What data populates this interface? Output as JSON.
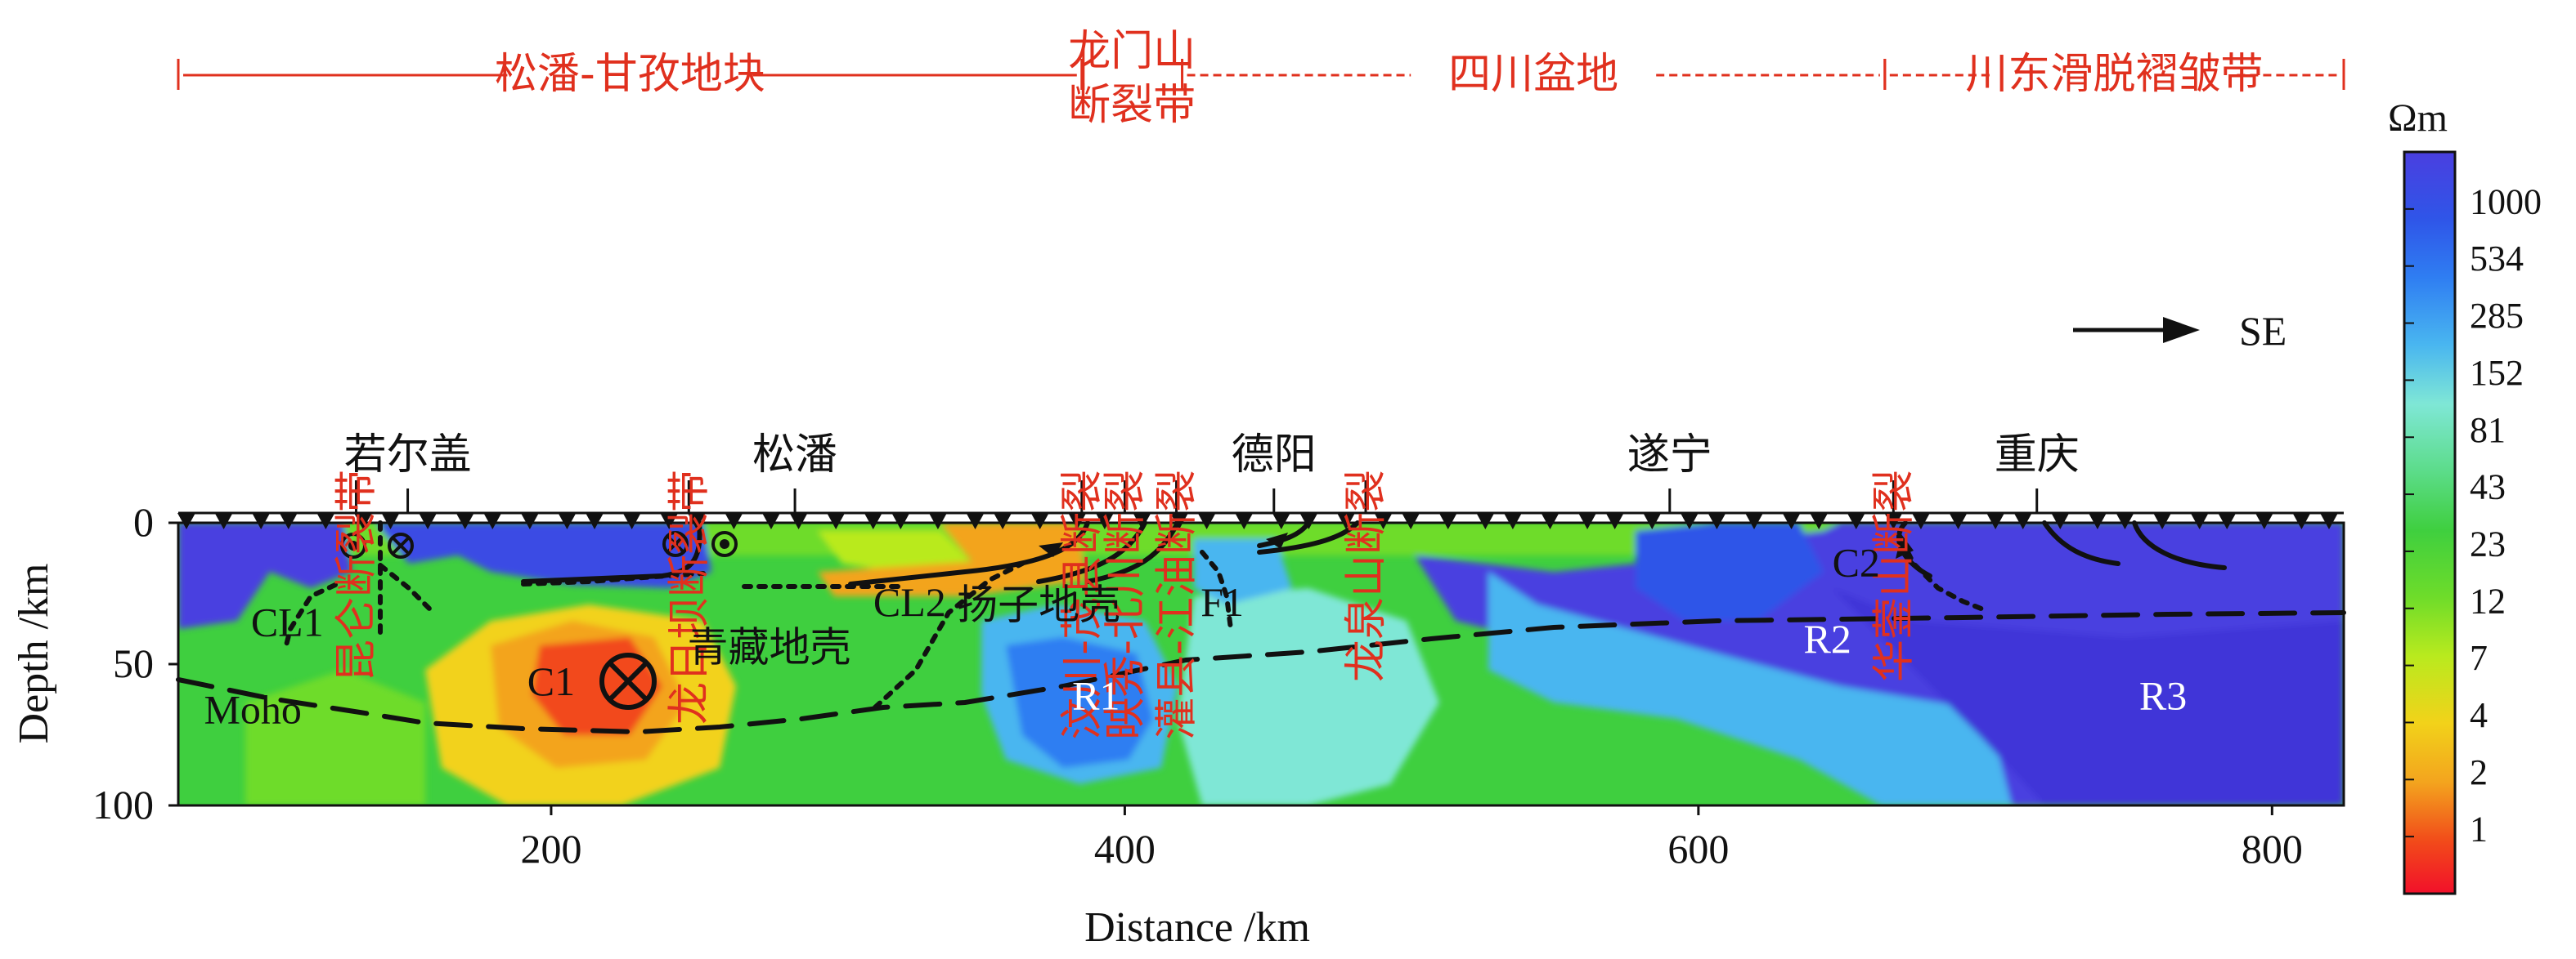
{
  "chart_data": {
    "type": "heatmap",
    "xlabel": "Distance /km",
    "ylabel": "Depth /km",
    "xlim": [
      70,
      825
    ],
    "ylim": [
      0,
      100
    ],
    "xticks": [
      "200",
      "400",
      "600",
      "800"
    ],
    "yticks": [
      "0",
      "50",
      "100"
    ],
    "colorbar": {
      "unit": "Ωm",
      "labels": [
        "1000",
        "534",
        "285",
        "152",
        "81",
        "43",
        "23",
        "12",
        "7",
        "4",
        "2",
        "1"
      ],
      "colors": [
        "#4a3fe0",
        "#2f55e8",
        "#2f7ef2",
        "#49b6f0",
        "#7fe7d6",
        "#5cdc8a",
        "#3fcf3f",
        "#6edc2a",
        "#b9ea1e",
        "#f2d21a",
        "#f3a41e",
        "#f24a1a",
        "#f2102a"
      ]
    },
    "regions": [
      {
        "label": "松潘-甘孜地块",
        "x_start": 70,
        "x_end": 385,
        "style": "solid"
      },
      {
        "label": "龙门山断裂带",
        "x_start": 385,
        "x_end": 420,
        "style": "bracket"
      },
      {
        "label": "四川盆地",
        "x_start": 420,
        "x_end": 665,
        "style": "dashed"
      },
      {
        "label": "川东滑脱褶皱带",
        "x_start": 665,
        "x_end": 825,
        "style": "dashed"
      }
    ],
    "faults": [
      {
        "label": "昆仑断裂带",
        "x": 132
      },
      {
        "label": "龙日坝断裂带",
        "x": 248
      },
      {
        "label": "汶川-茂县断裂",
        "x": 385
      },
      {
        "label": "映秀-北川断裂",
        "x": 400
      },
      {
        "label": "灌县-江油断裂",
        "x": 418
      },
      {
        "label": "龙泉山断裂",
        "x": 484
      },
      {
        "label": "华蓥山断裂",
        "x": 668
      }
    ],
    "places": [
      {
        "label": "若尔盖",
        "x": 150
      },
      {
        "label": "松潘",
        "x": 285
      },
      {
        "label": "德阳",
        "x": 452
      },
      {
        "label": "遂宁",
        "x": 590
      },
      {
        "label": "重庆",
        "x": 718
      }
    ],
    "annotations": [
      {
        "label": "CL1",
        "x": 108,
        "depth": 40,
        "color": "black"
      },
      {
        "label": "CL2",
        "x": 325,
        "depth": 33,
        "color": "black"
      },
      {
        "label": "扬子地壳",
        "x": 370,
        "depth": 34,
        "color": "black"
      },
      {
        "label": "F1",
        "x": 434,
        "depth": 33,
        "color": "black"
      },
      {
        "label": "青藏地壳",
        "x": 276,
        "depth": 49,
        "color": "black"
      },
      {
        "label": "C1",
        "x": 200,
        "depth": 61,
        "color": "black"
      },
      {
        "label": "C2",
        "x": 655,
        "depth": 19,
        "color": "black"
      },
      {
        "label": "Moho",
        "x": 96,
        "depth": 71,
        "color": "black"
      },
      {
        "label": "R1",
        "x": 390,
        "depth": 66,
        "color": "white"
      },
      {
        "label": "R2",
        "x": 645,
        "depth": 46,
        "color": "white"
      },
      {
        "label": "R3",
        "x": 762,
        "depth": 66,
        "color": "white"
      }
    ],
    "direction_label": "SE",
    "station_count": 64
  }
}
